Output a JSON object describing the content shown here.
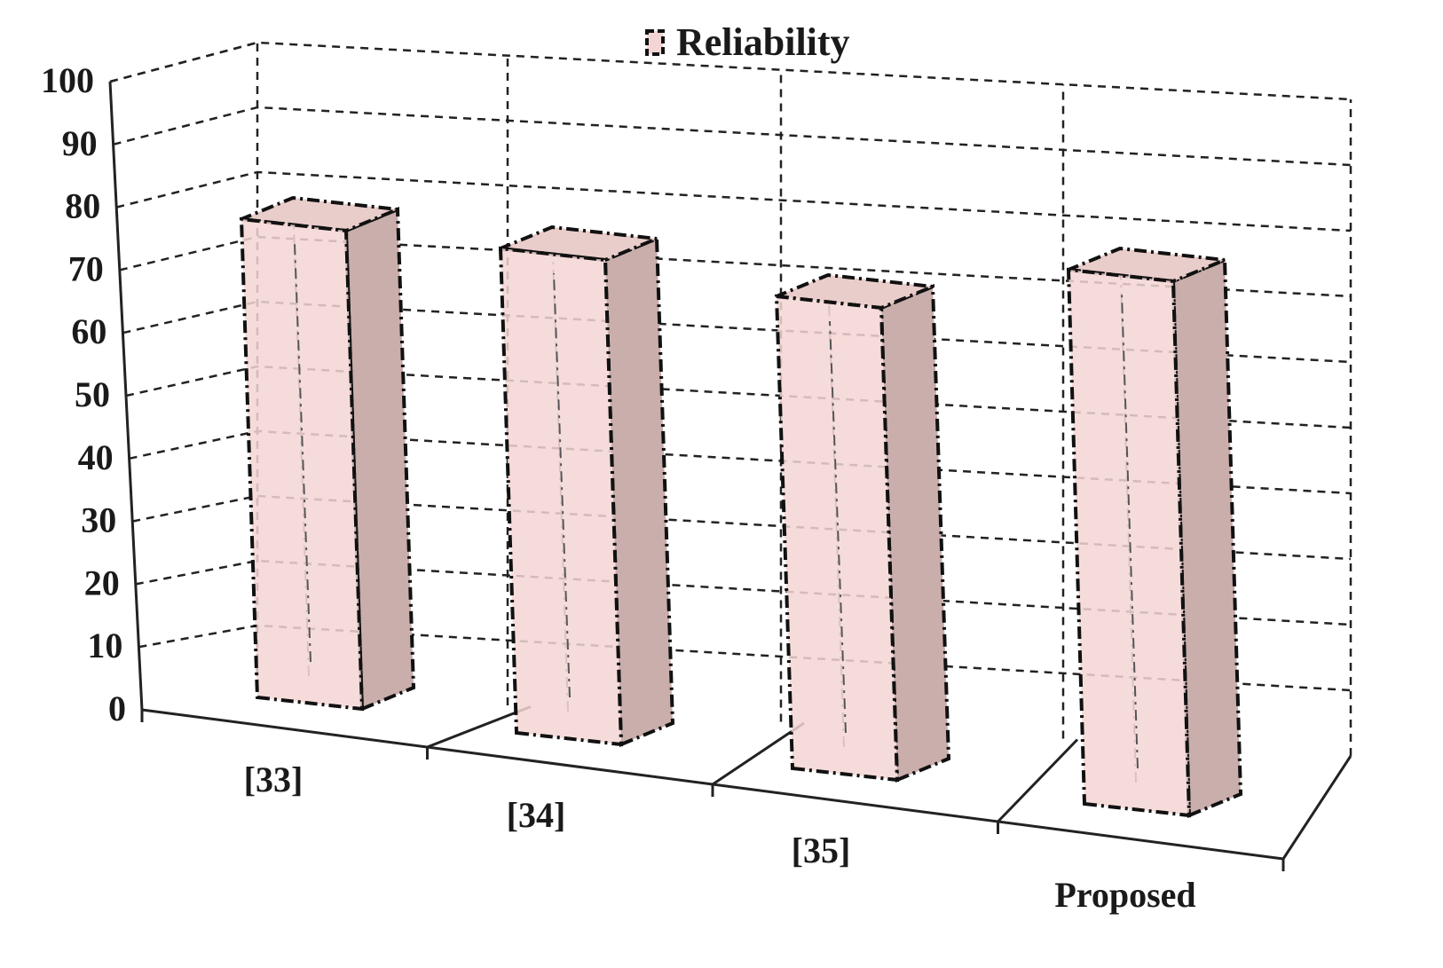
{
  "chart_data": {
    "type": "bar",
    "title": "",
    "xlabel": "",
    "ylabel": "",
    "categories": [
      "[33]",
      "[34]",
      "[35]",
      "Proposed"
    ],
    "series": [
      {
        "name": "Reliability",
        "values": [
          77,
          78,
          76,
          86
        ]
      }
    ],
    "ylim": [
      0,
      100
    ],
    "yticks": [
      0,
      10,
      20,
      30,
      40,
      50,
      60,
      70,
      80,
      90,
      100
    ],
    "grid": true,
    "legend": "top",
    "style": "3d-column",
    "colors": {
      "bar_front": "#f3d6d3",
      "bar_side": "#c9aeac",
      "bar_top": "#e9cdca"
    }
  }
}
